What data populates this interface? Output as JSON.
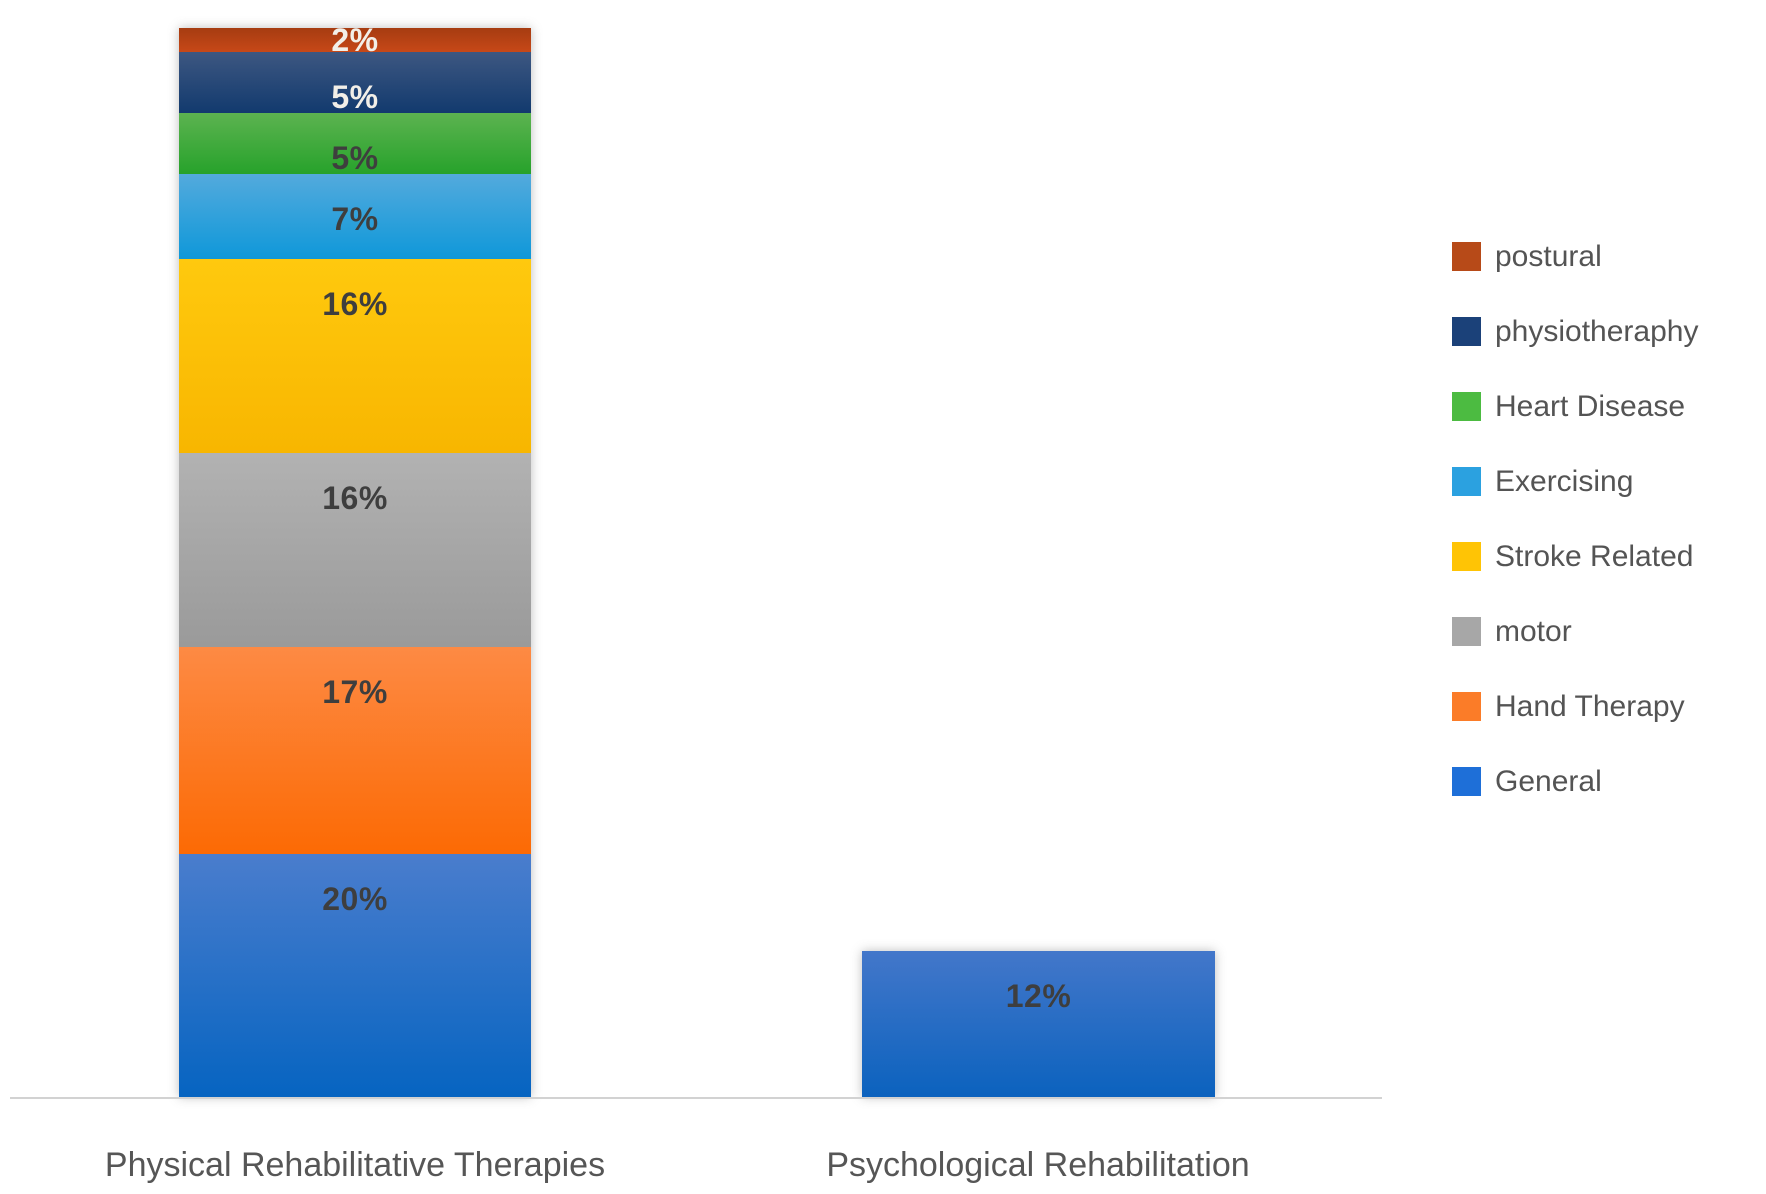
{
  "chart_data": {
    "type": "bar",
    "stacked": true,
    "orientation": "vertical",
    "title": "",
    "xlabel": "",
    "ylabel": "",
    "value_unit": "%",
    "gridlines": false,
    "y_axis_visible": false,
    "categories": [
      "Physical Rehabilitative Therapies",
      "Psychological Rehabilitation"
    ],
    "series": [
      {
        "name": "General",
        "values": [
          20,
          12
        ],
        "color": "#1e6fd8"
      },
      {
        "name": "Hand Therapy",
        "values": [
          17,
          0
        ],
        "color": "#fb7c28"
      },
      {
        "name": "motor",
        "values": [
          16,
          0
        ],
        "color": "#a7a7a7"
      },
      {
        "name": "Stroke Related",
        "values": [
          16,
          0
        ],
        "color": "#ffc405"
      },
      {
        "name": "Exercising",
        "values": [
          7,
          0
        ],
        "color": "#2ba1e0"
      },
      {
        "name": "Heart Disease",
        "values": [
          5,
          0
        ],
        "color": "#4cbb41"
      },
      {
        "name": "physiotheraphy",
        "values": [
          5,
          0
        ],
        "color": "#1b4179"
      },
      {
        "name": "postural",
        "values": [
          2,
          0
        ],
        "color": "#b74a18"
      }
    ],
    "legend": {
      "position": "right",
      "items": [
        {
          "label": "postural",
          "color": "#b74a18"
        },
        {
          "label": "physiotheraphy",
          "color": "#1b4179"
        },
        {
          "label": "Heart Disease",
          "color": "#4cbb41"
        },
        {
          "label": "Exercising",
          "color": "#2ba1e0"
        },
        {
          "label": "Stroke Related",
          "color": "#ffc405"
        },
        {
          "label": "motor",
          "color": "#a7a7a7"
        },
        {
          "label": "Hand Therapy",
          "color": "#fb7c28"
        },
        {
          "label": "General",
          "color": "#1e6fd8"
        }
      ]
    },
    "bars": [
      {
        "category": "Physical Rehabilitative Therapies",
        "total_pct": 88,
        "segments_top_to_bottom": [
          {
            "series": "postural",
            "pct": 2,
            "label": "2%",
            "label_style": "light",
            "gradient": [
              "#a63c11",
              "#c74818"
            ]
          },
          {
            "series": "physiotheraphy",
            "pct": 5,
            "label": "5%",
            "label_style": "light",
            "gradient": [
              "#3d5781",
              "#123a6e"
            ]
          },
          {
            "series": "Heart Disease",
            "pct": 5,
            "label": "5%",
            "label_style": "dark",
            "gradient": [
              "#5cb350",
              "#27a22b"
            ]
          },
          {
            "series": "Exercising",
            "pct": 7,
            "label": "7%",
            "label_style": "dark",
            "gradient": [
              "#53aadd",
              "#0f98d9"
            ]
          },
          {
            "series": "Stroke Related",
            "pct": 16,
            "label": "16%",
            "label_style": "dark",
            "gradient": [
              "#ffc90e",
              "#f8b600"
            ]
          },
          {
            "series": "motor",
            "pct": 16,
            "label": "16%",
            "label_style": "dark",
            "gradient": [
              "#b2b2b2",
              "#9a9a9a"
            ]
          },
          {
            "series": "Hand Therapy",
            "pct": 17,
            "label": "17%",
            "label_style": "dark",
            "gradient": [
              "#fd8a44",
              "#fc6a04"
            ]
          },
          {
            "series": "General",
            "pct": 20,
            "label": "20%",
            "label_style": "dark",
            "gradient": [
              "#4a7dcd",
              "#0664c1"
            ]
          }
        ]
      },
      {
        "category": "Psychological Rehabilitation",
        "total_pct": 12,
        "segments_top_to_bottom": [
          {
            "series": "General",
            "pct": 12,
            "label": "12%",
            "label_style": "dark",
            "gradient": [
              "#4377ca",
              "#0b62be"
            ]
          }
        ]
      }
    ],
    "colors": {
      "axis_line": "#d2d2d2",
      "data_label_dark": "#3e3e3e",
      "data_label_light": "#f2efe8",
      "category_label": "#565656",
      "legend_text": "#545454"
    }
  }
}
